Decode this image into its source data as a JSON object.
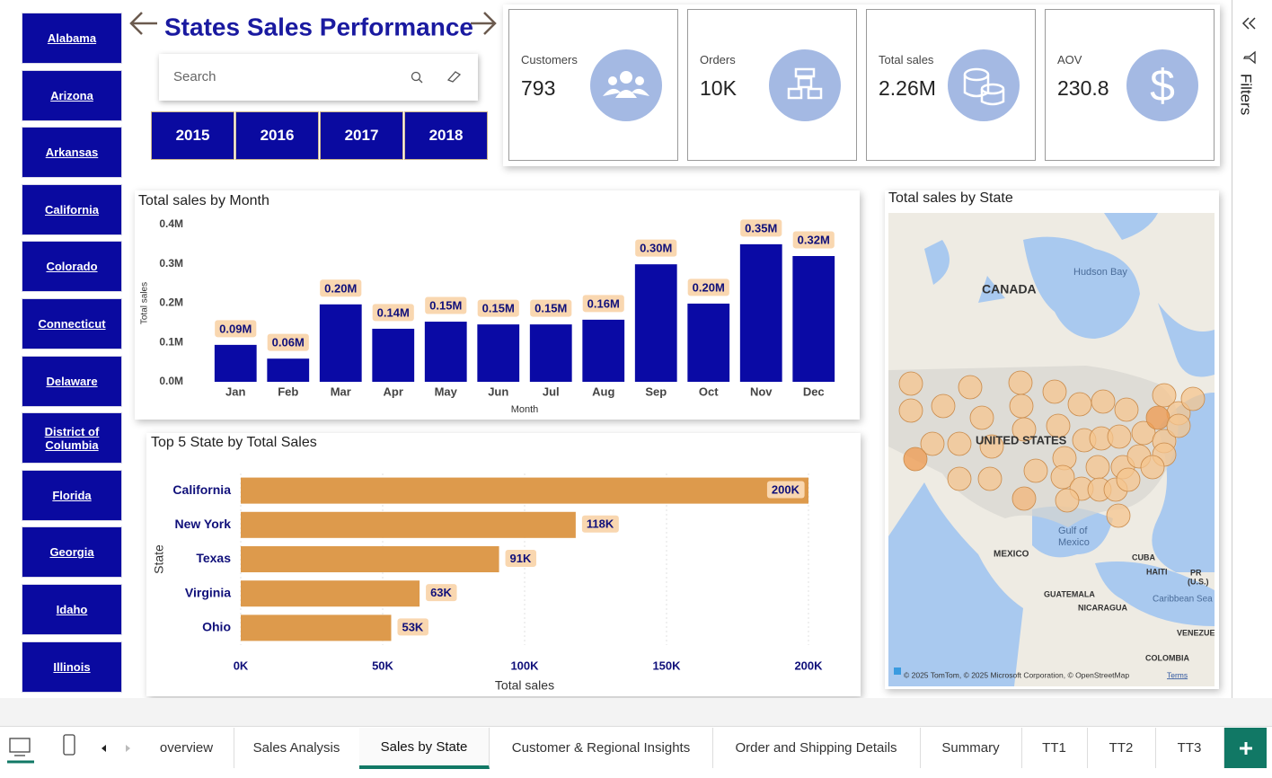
{
  "states": [
    "Alabama",
    "Arizona",
    "Arkansas",
    "California",
    "Colorado",
    "Connecticut",
    "Delaware",
    "District of Columbia",
    "Florida",
    "Georgia",
    "Idaho",
    "Illinois"
  ],
  "header": {
    "title": "States Sales Performance"
  },
  "search": {
    "placeholder": "Search"
  },
  "years": [
    "2015",
    "2016",
    "2017",
    "2018"
  ],
  "kpis": [
    {
      "label": "Customers",
      "value": "793"
    },
    {
      "label": "Orders",
      "value": "10K"
    },
    {
      "label": "Total sales",
      "value": "2.26M"
    },
    {
      "label": "AOV",
      "value": "230.8"
    }
  ],
  "chart_data": [
    {
      "type": "bar",
      "title": "Total sales by Month",
      "x_label": "Month",
      "y_label": "Total sales",
      "categories": [
        "Jan",
        "Feb",
        "Mar",
        "Apr",
        "May",
        "Jun",
        "Jul",
        "Aug",
        "Sep",
        "Oct",
        "Nov",
        "Dec"
      ],
      "values": [
        94000,
        59000,
        197000,
        135000,
        153000,
        146000,
        146000,
        158000,
        299000,
        199000,
        350000,
        320000
      ],
      "value_labels": [
        "0.09M",
        "0.06M",
        "0.20M",
        "0.14M",
        "0.15M",
        "0.15M",
        "0.15M",
        "0.16M",
        "0.30M",
        "0.20M",
        "0.35M",
        "0.32M"
      ],
      "color": "#0a0aa5",
      "ylim": [
        0,
        400000
      ],
      "yticks": [
        {
          "value": 0,
          "label": "0.0M"
        },
        {
          "value": 100000,
          "label": "0.1M"
        },
        {
          "value": 200000,
          "label": "0.2M"
        },
        {
          "value": 300000,
          "label": "0.3M"
        },
        {
          "value": 400000,
          "label": "0.4M"
        }
      ]
    },
    {
      "type": "hbar",
      "title": "Top 5 State by Total Sales",
      "x_label": "Total sales",
      "y_label": "State",
      "categories": [
        "California",
        "New York",
        "Texas",
        "Virginia",
        "Ohio"
      ],
      "values": [
        200000,
        118000,
        91000,
        63000,
        53000
      ],
      "value_labels": [
        "200K",
        "118K",
        "91K",
        "63K",
        "53K"
      ],
      "color": "#dd9a4c",
      "xlim": [
        0,
        200000
      ],
      "grid": true,
      "xticks": [
        {
          "value": 0,
          "label": "0K"
        },
        {
          "value": 50000,
          "label": "50K"
        },
        {
          "value": 100000,
          "label": "100K"
        },
        {
          "value": 150000,
          "label": "150K"
        },
        {
          "value": 200000,
          "label": "200K"
        }
      ]
    }
  ],
  "map": {
    "title": "Total sales by State",
    "labels": [
      "Hudson Bay",
      "CANADA",
      "UNITED STATES",
      "Gulf of",
      "Mexico",
      "MEXICO",
      "CUBA",
      "HAITI",
      "PR",
      "(U.S.)",
      "Caribbean Sea",
      "GUATEMALA",
      "NICARAGUA",
      "VENEZUELA",
      "COLOMBIA"
    ],
    "attribution": "© 2025 TomTom, © 2025 Microsoft Corporation, © OpenStreetMap",
    "terms": "Terms"
  },
  "filters": "Filters",
  "tabs": [
    "overview",
    "Sales Analysis",
    "Sales by State",
    "Customer & Regional Insights",
    "Order and Shipping Details",
    "Summary",
    "TT1",
    "TT2",
    "TT3"
  ]
}
